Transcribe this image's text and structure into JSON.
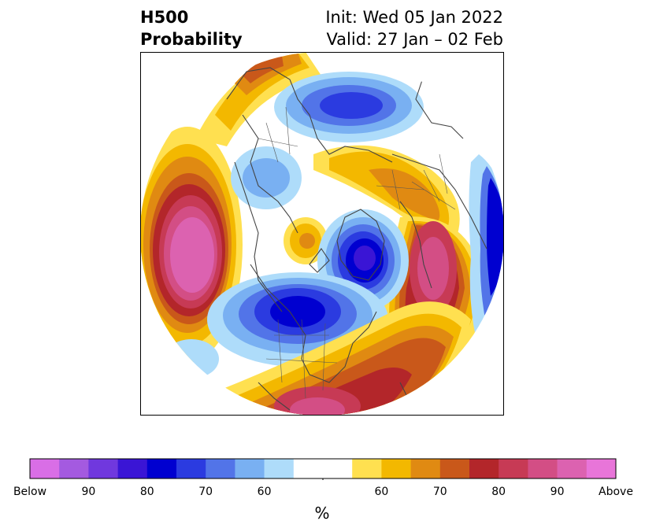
{
  "header": {
    "title_line1": "H500",
    "title_line2": "Probability",
    "init": "Init: Wed 05 Jan 2022",
    "valid": "Valid: 27 Jan – 02 Feb"
  },
  "colors": {
    "below": [
      "#d96ee6",
      "#a45ae0",
      "#7038de",
      "#3a15d5",
      "#0000d0",
      "#2b3be0",
      "#5274e8",
      "#79b0f2",
      "#aedcfa"
    ],
    "neutral": "#ffffff",
    "above": [
      "#ffe050",
      "#f3b800",
      "#e08a12",
      "#c9581a",
      "#b3262a",
      "#c73a55",
      "#d34e85",
      "#dc62b0",
      "#e875d9"
    ],
    "border": "#444444"
  },
  "colorbar": {
    "tick_labels": [
      "Below",
      "90",
      "80",
      "70",
      "60",
      "60",
      "70",
      "80",
      "90",
      "Above"
    ],
    "unit": "%"
  }
}
